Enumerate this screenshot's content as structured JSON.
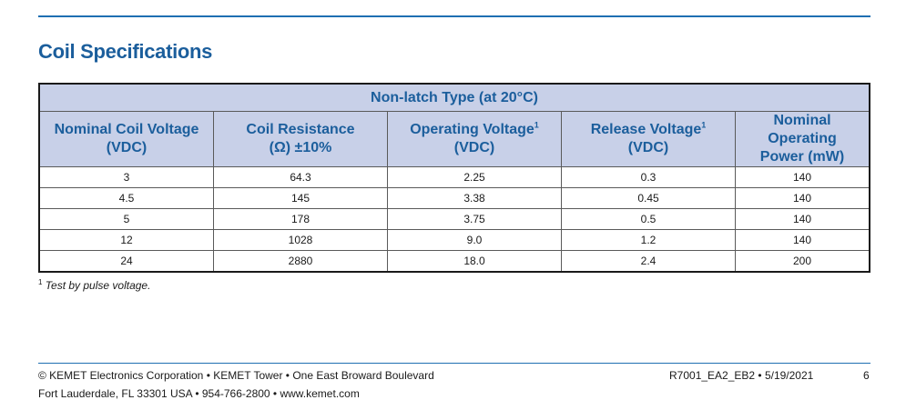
{
  "section_title": "Coil Specifications",
  "table": {
    "banner": "Non-latch Type (at 20°C)",
    "columns": [
      {
        "line1": "Nominal Coil Voltage",
        "line2": "(VDC)",
        "note": ""
      },
      {
        "line1": "Coil Resistance",
        "line2": "(Ω) ±10%",
        "note": ""
      },
      {
        "line1": "Operating Voltage",
        "line2": "(VDC)",
        "note": "1"
      },
      {
        "line1": "Release Voltage",
        "line2": "(VDC)",
        "note": "1"
      },
      {
        "line1": "Nominal Operating",
        "line2": "Power (mW)",
        "note": ""
      }
    ],
    "rows": [
      [
        "3",
        "64.3",
        "2.25",
        "0.3",
        "140"
      ],
      [
        "4.5",
        "145",
        "3.38",
        "0.45",
        "140"
      ],
      [
        "5",
        "178",
        "3.75",
        "0.5",
        "140"
      ],
      [
        "12",
        "1028",
        "9.0",
        "1.2",
        "140"
      ],
      [
        "24",
        "2880",
        "18.0",
        "2.4",
        "200"
      ]
    ]
  },
  "footnote": {
    "mark": "1",
    "text": "Test by pulse voltage."
  },
  "footer": {
    "line1": "© KEMET Electronics Corporation • KEMET Tower • One East Broward Boulevard",
    "line2": "Fort Lauderdale, FL 33301 USA • 954-766-2800 • www.kemet.com",
    "doc_ref": "R7001_EA2_EB2 • 5/19/2021",
    "page": "6"
  }
}
